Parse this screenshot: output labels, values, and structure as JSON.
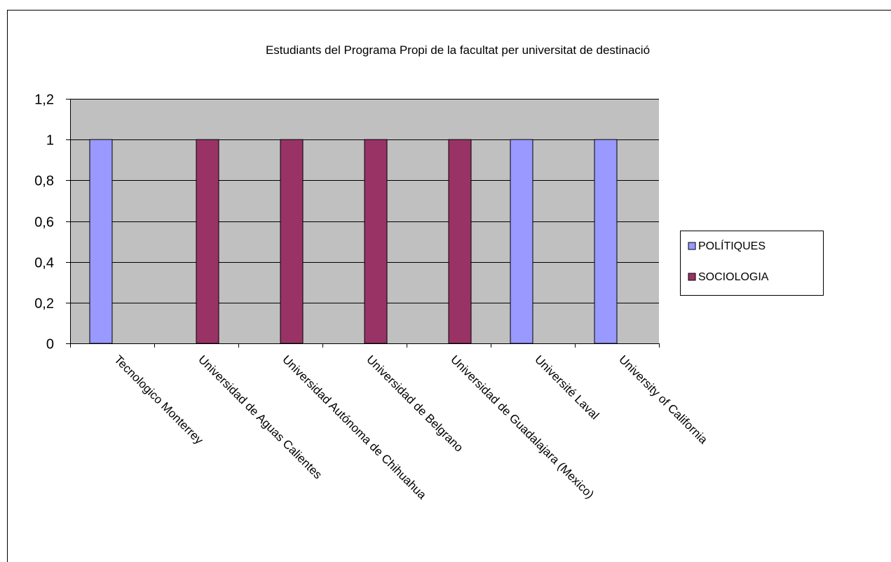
{
  "chart_data": {
    "type": "bar",
    "title": "Estudiants del Programa Propi de la facultat per universitat de destinació",
    "xlabel": "",
    "ylabel": "",
    "categories": [
      "Tecnologico Monterrey",
      "Universidad de Aguas Calientes",
      "Universidad Autónoma de Chihuahua",
      "Universidad de Belgrano",
      "Universidad de Guadalajara (Mexico)",
      "Université Laval",
      "University of California"
    ],
    "series": [
      {
        "name": "POLÍTIQUES",
        "color": "#9999ff",
        "values": [
          1,
          0,
          0,
          0,
          0,
          1,
          1
        ]
      },
      {
        "name": "SOCIOLOGIA",
        "color": "#993366",
        "values": [
          0,
          1,
          1,
          1,
          1,
          0,
          0
        ]
      }
    ],
    "ylim": [
      0,
      1.2
    ],
    "yticks": [
      "0",
      "0,2",
      "0,4",
      "0,6",
      "0,8",
      "1",
      "1,2"
    ],
    "grid": true,
    "plot_background": "#c0c0c0",
    "legend_position": "right"
  }
}
